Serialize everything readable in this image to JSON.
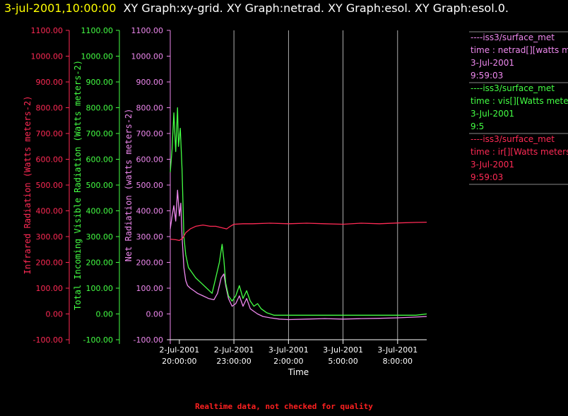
{
  "header": {
    "timestamp": "3-jul-2001,10:00:00",
    "graphs": "XY Graph:xy-grid.  XY Graph:netrad.  XY Graph:esol.  XY Graph:esol.0."
  },
  "footer": {
    "note": "Realtime data, not checked for quality"
  },
  "colors": {
    "infrared": "#ff2a55",
    "visible": "#44ff44",
    "net": "#ee88ee",
    "axis": "#ffffff",
    "grid": "#ffffff",
    "timestamp": "#ffff00",
    "footer": "#ff2020"
  },
  "chart_data": {
    "type": "line",
    "xlabel": "Time",
    "x_ticks": [
      {
        "date": "2-Jul-2001",
        "time": "20:00:00"
      },
      {
        "date": "2-Jul-2001",
        "time": "23:00:00"
      },
      {
        "date": "3-Jul-2001",
        "time": "2:00:00"
      },
      {
        "date": "3-Jul-2001",
        "time": "5:00:00"
      },
      {
        "date": "3-Jul-2001",
        "time": "8:00:00"
      }
    ],
    "x_range_hours": [
      19.5,
      33.6
    ],
    "y_ticks": [
      "1100.00",
      "1000.00",
      "900.00",
      "800.00",
      "700.00",
      "600.00",
      "500.00",
      "400.00",
      "300.00",
      "200.00",
      "100.00",
      "0.00",
      "-100.00"
    ],
    "ylim": [
      -100,
      1100
    ],
    "axes": [
      {
        "key": "infrared",
        "label": "Infrared Radiation (Watts meters-2)"
      },
      {
        "key": "visible",
        "label": "Total Incoming Visible Radiation (Watts meters-2)"
      },
      {
        "key": "net",
        "label": "Net Radiation (watts meters-2)"
      }
    ],
    "grid": true,
    "series": [
      {
        "key": "net",
        "legend": [
          "----iss3/surface_met",
          "time : netrad[][watts meters",
          "3-Jul-2001",
          "9:59:03"
        ],
        "x": [
          19.5,
          19.6,
          19.7,
          19.8,
          19.9,
          20.0,
          20.08,
          20.15,
          20.25,
          20.35,
          20.45,
          20.6,
          20.8,
          21.0,
          21.3,
          21.6,
          21.9,
          22.1,
          22.3,
          22.45,
          22.55,
          22.7,
          22.9,
          23.1,
          23.3,
          23.5,
          23.7,
          23.9,
          24.1,
          24.3,
          24.6,
          25.0,
          25.5,
          26.0,
          27.0,
          28.0,
          29.0,
          30.0,
          31.0,
          32.0,
          33.0,
          33.6
        ],
        "y": [
          330,
          380,
          420,
          360,
          480,
          380,
          430,
          300,
          180,
          130,
          110,
          100,
          90,
          80,
          70,
          60,
          55,
          80,
          140,
          155,
          110,
          60,
          30,
          40,
          70,
          30,
          60,
          20,
          10,
          0,
          -10,
          -15,
          -20,
          -22,
          -20,
          -18,
          -20,
          -18,
          -17,
          -15,
          -12,
          -10
        ]
      },
      {
        "key": "visible",
        "legend": [
          "----iss3/surface_met",
          "time : vis[][Watts meter",
          "3-Jul-2001",
          "9:5"
        ],
        "x": [
          19.5,
          19.6,
          19.7,
          19.8,
          19.9,
          19.95,
          20.05,
          20.15,
          20.25,
          20.35,
          20.5,
          20.7,
          20.9,
          21.2,
          21.5,
          21.8,
          22.0,
          22.2,
          22.35,
          22.45,
          22.55,
          22.7,
          22.9,
          23.1,
          23.3,
          23.5,
          23.7,
          23.9,
          24.1,
          24.3,
          24.5,
          24.8,
          25.2,
          26.0,
          27.0,
          28.0,
          29.0,
          30.0,
          31.0,
          32.0,
          33.0,
          33.6
        ],
        "y": [
          550,
          640,
          780,
          630,
          800,
          650,
          720,
          560,
          300,
          230,
          180,
          160,
          140,
          120,
          100,
          80,
          140,
          200,
          270,
          210,
          120,
          70,
          50,
          70,
          110,
          60,
          90,
          50,
          30,
          40,
          20,
          5,
          -5,
          -5,
          -5,
          -5,
          -5,
          -5,
          -5,
          -5,
          -5,
          0
        ]
      },
      {
        "key": "infrared",
        "legend": [
          "----iss3/surface_met",
          "time : ir[][Watts meters",
          "3-Jul-2001",
          "9:59:03"
        ],
        "x": [
          19.5,
          19.8,
          20.0,
          20.2,
          20.35,
          20.6,
          20.9,
          21.3,
          21.7,
          22.0,
          22.3,
          22.6,
          22.8,
          23.0,
          23.5,
          24.0,
          25.0,
          26.0,
          27.0,
          28.0,
          29.0,
          30.0,
          31.0,
          32.0,
          33.0,
          33.6
        ],
        "y": [
          290,
          288,
          285,
          295,
          315,
          330,
          340,
          345,
          340,
          340,
          335,
          330,
          340,
          348,
          350,
          350,
          352,
          350,
          352,
          350,
          348,
          352,
          350,
          353,
          355,
          356
        ]
      }
    ]
  }
}
